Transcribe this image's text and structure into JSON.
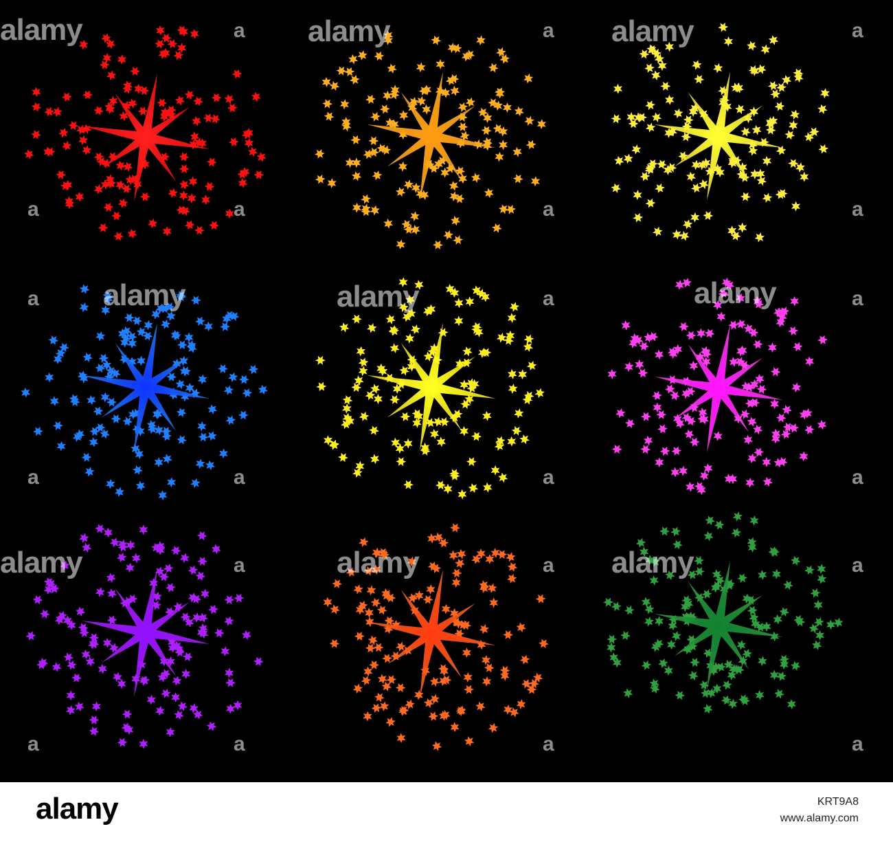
{
  "watermark": {
    "word": "alamy",
    "letter": "a"
  },
  "footer": {
    "logo": "alamy",
    "image_id": "KRT9A8",
    "url": "www.alamy.com"
  },
  "fireworks": [
    {
      "name": "red-firework",
      "color": "#ff1010",
      "center_color": "#ff2020"
    },
    {
      "name": "orange-firework",
      "color": "#ffb020",
      "center_color": "#ff9a10"
    },
    {
      "name": "yellow-firework",
      "color": "#ffee40",
      "center_color": "#ffff30"
    },
    {
      "name": "blue-firework",
      "color": "#2080ff",
      "center_color": "#1030ff"
    },
    {
      "name": "yellow-firework-2",
      "color": "#ffee20",
      "center_color": "#ffff20"
    },
    {
      "name": "magenta-firework",
      "color": "#ff40f0",
      "center_color": "#ff10ff"
    },
    {
      "name": "purple-firework",
      "color": "#b020ff",
      "center_color": "#9010ff"
    },
    {
      "name": "deep-orange-firework",
      "color": "#ff6a20",
      "center_color": "#ff3a10"
    },
    {
      "name": "green-firework",
      "color": "#30a040",
      "center_color": "#108030"
    }
  ]
}
